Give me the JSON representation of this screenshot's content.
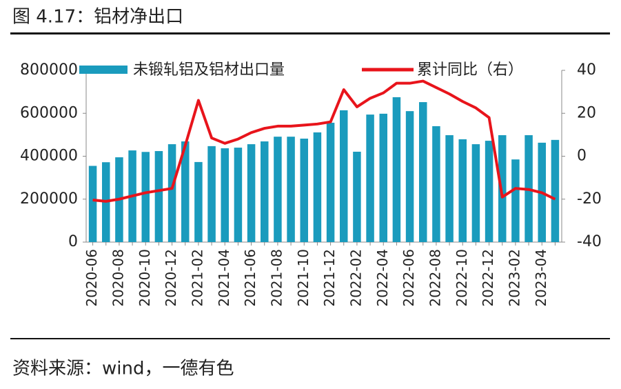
{
  "title": "图 4.17：铝材净出口",
  "source": "资料来源：wind，一德有色",
  "chart_data": {
    "type": "bar-line",
    "categories": [
      "2020-06",
      null,
      "2020-08",
      null,
      "2020-10",
      null,
      "2020-12",
      null,
      "2021-02",
      null,
      "2021-04",
      null,
      "2021-06",
      null,
      "2021-08",
      null,
      "2021-10",
      null,
      "2021-12",
      null,
      "2022-02",
      null,
      "2022-04",
      null,
      "2022-06",
      null,
      "2022-08",
      null,
      "2022-10",
      null,
      "2022-12",
      null,
      "2023-02",
      null,
      "2023-04",
      null
    ],
    "series": [
      {
        "name": "未锻轧铝及铝材出口量",
        "type": "bar",
        "color": "#1a9bbd",
        "values": [
          355000,
          372000,
          395000,
          427000,
          420000,
          424000,
          456000,
          469000,
          373000,
          447000,
          437000,
          440000,
          456000,
          469000,
          491000,
          491000,
          482000,
          511000,
          556000,
          614000,
          421000,
          594000,
          598000,
          675000,
          610000,
          652000,
          540000,
          498000,
          479000,
          456000,
          472000,
          498000,
          385000,
          498000,
          463000,
          476000
        ]
      },
      {
        "name": "累计同比（右）",
        "type": "line",
        "axis": "y2",
        "color": "#e8141b",
        "values": [
          -20.4,
          -21,
          -20,
          -18.5,
          -17,
          -16,
          -15,
          5,
          26,
          8.5,
          6,
          8,
          11,
          13,
          14,
          14,
          14.5,
          15,
          16,
          31,
          23,
          27,
          29.5,
          34,
          34,
          35,
          32,
          29,
          25.5,
          22.5,
          18,
          -19,
          -15,
          -15.5,
          -17,
          -20
        ]
      }
    ],
    "ylim": [
      0,
      800000
    ],
    "yticks": [
      0,
      200000,
      400000,
      600000,
      800000
    ],
    "y2lim": [
      -40,
      40
    ],
    "y2ticks": [
      -40,
      -20,
      0,
      20,
      40
    ],
    "legend": "top"
  }
}
